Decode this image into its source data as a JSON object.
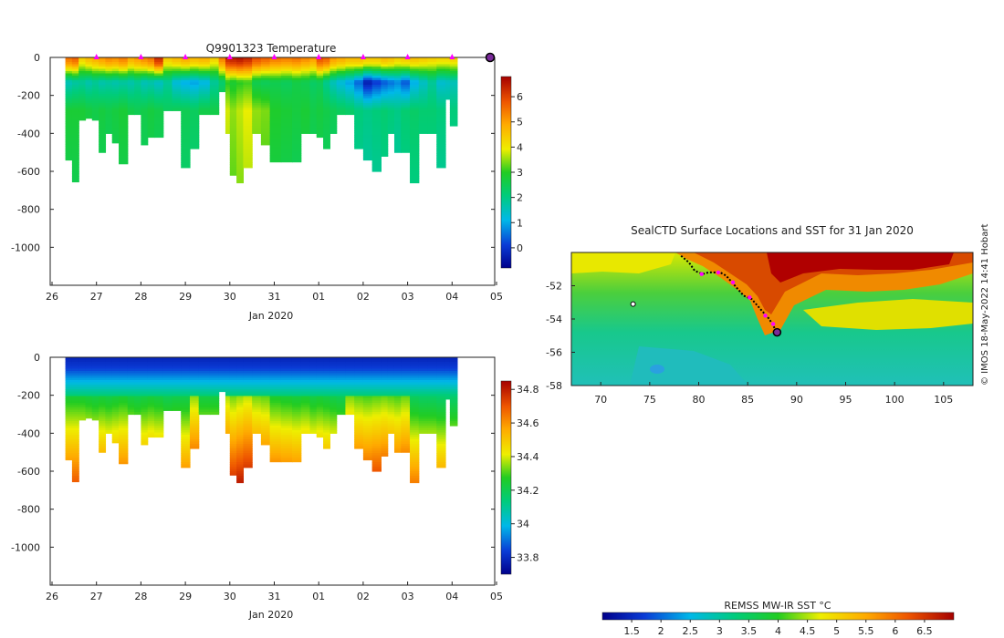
{
  "chart_data": [
    {
      "type": "heatmap",
      "name": "temperature-section",
      "title": "Q9901323  Temperature",
      "xlabel": "Jan 2020",
      "x_tick_labels": [
        "26",
        "27",
        "28",
        "29",
        "30",
        "31",
        "01",
        "02",
        "03",
        "04",
        "05"
      ],
      "x_range_days": [
        26,
        36
      ],
      "y_tick_labels": [
        "0",
        "-200",
        "-400",
        "-600",
        "-800",
        "-1000"
      ],
      "ylim": [
        -1200,
        0
      ],
      "colorbar": {
        "ticks": [
          "6",
          "5",
          "4",
          "3",
          "2",
          "1",
          "0"
        ],
        "range": [
          -0.8,
          6.8
        ],
        "units": "°C"
      },
      "marker_days": [
        27,
        28,
        29,
        30,
        31,
        32,
        33,
        34,
        35
      ],
      "profiles": [
        {
          "day": 26.3,
          "depth": 540,
          "surface": 5.6,
          "deep": 2.8,
          "cold": 1.5
        },
        {
          "day": 26.45,
          "depth": 655,
          "surface": 5.8,
          "deep": 2.8,
          "cold": 1.7
        },
        {
          "day": 26.6,
          "depth": 330,
          "surface": 4.5,
          "deep": 2.8,
          "cold": 1.8
        },
        {
          "day": 26.75,
          "depth": 320,
          "surface": 4.8,
          "deep": 2.7,
          "cold": 1.6
        },
        {
          "day": 26.9,
          "depth": 330,
          "surface": 5.0,
          "deep": 2.6,
          "cold": 1.8
        },
        {
          "day": 27.05,
          "depth": 500,
          "surface": 5.2,
          "deep": 2.7,
          "cold": 1.6
        },
        {
          "day": 27.2,
          "depth": 400,
          "surface": 5.4,
          "deep": 2.6,
          "cold": 1.7
        },
        {
          "day": 27.35,
          "depth": 450,
          "surface": 5.3,
          "deep": 2.7,
          "cold": 1.6
        },
        {
          "day": 27.5,
          "depth": 560,
          "surface": 5.5,
          "deep": 2.8,
          "cold": 1.7
        },
        {
          "day": 27.7,
          "depth": 300,
          "surface": 5.0,
          "deep": 2.6,
          "cold": 1.6
        },
        {
          "day": 27.85,
          "depth": 300,
          "surface": 5.2,
          "deep": 2.5,
          "cold": 1.8
        },
        {
          "day": 28.0,
          "depth": 460,
          "surface": 5.4,
          "deep": 2.6,
          "cold": 1.5
        },
        {
          "day": 28.15,
          "depth": 420,
          "surface": 5.6,
          "deep": 2.7,
          "cold": 1.6
        },
        {
          "day": 28.3,
          "depth": 420,
          "surface": 6.4,
          "deep": 2.6,
          "cold": 1.4
        },
        {
          "day": 28.5,
          "depth": 280,
          "surface": 4.6,
          "deep": 2.4,
          "cold": 1.8
        },
        {
          "day": 28.7,
          "depth": 280,
          "surface": 4.8,
          "deep": 2.5,
          "cold": 1.2
        },
        {
          "day": 28.9,
          "depth": 580,
          "surface": 5.0,
          "deep": 2.5,
          "cold": 1.0
        },
        {
          "day": 29.1,
          "depth": 480,
          "surface": 4.8,
          "deep": 2.4,
          "cold": 0.9
        },
        {
          "day": 29.3,
          "depth": 300,
          "surface": 4.9,
          "deep": 2.6,
          "cold": 1.1
        },
        {
          "day": 29.55,
          "depth": 300,
          "surface": 4.5,
          "deep": 2.6,
          "cold": 1.8
        },
        {
          "day": 29.75,
          "depth": 180,
          "surface": 5.5,
          "deep": 3.0,
          "cold": 2.2
        },
        {
          "day": 29.9,
          "depth": 400,
          "surface": 6.5,
          "deep": 3.8,
          "cold": 3.0
        },
        {
          "day": 30.0,
          "depth": 620,
          "surface": 6.6,
          "deep": 3.5,
          "cold": 2.8
        },
        {
          "day": 30.15,
          "depth": 660,
          "surface": 6.7,
          "deep": 3.7,
          "cold": 3.0
        },
        {
          "day": 30.3,
          "depth": 580,
          "surface": 6.5,
          "deep": 3.9,
          "cold": 3.1
        },
        {
          "day": 30.5,
          "depth": 400,
          "surface": 6.0,
          "deep": 3.5,
          "cold": 2.5
        },
        {
          "day": 30.7,
          "depth": 460,
          "surface": 5.8,
          "deep": 3.4,
          "cold": 2.4
        },
        {
          "day": 30.9,
          "depth": 550,
          "surface": 5.6,
          "deep": 2.9,
          "cold": 2.5
        },
        {
          "day": 31.15,
          "depth": 550,
          "surface": 5.5,
          "deep": 2.8,
          "cold": 2.4
        },
        {
          "day": 31.4,
          "depth": 550,
          "surface": 5.6,
          "deep": 2.7,
          "cold": 2.6
        },
        {
          "day": 31.6,
          "depth": 400,
          "surface": 5.4,
          "deep": 2.8,
          "cold": 2.5
        },
        {
          "day": 31.8,
          "depth": 400,
          "surface": 5.2,
          "deep": 2.6,
          "cold": 2.3
        },
        {
          "day": 31.95,
          "depth": 420,
          "surface": 6.0,
          "deep": 2.7,
          "cold": 2.4
        },
        {
          "day": 32.1,
          "depth": 480,
          "surface": 5.8,
          "deep": 2.6,
          "cold": 1.9
        },
        {
          "day": 32.25,
          "depth": 400,
          "surface": 5.2,
          "deep": 2.5,
          "cold": 1.5
        },
        {
          "day": 32.4,
          "depth": 300,
          "surface": 5.0,
          "deep": 2.4,
          "cold": 1.2
        },
        {
          "day": 32.6,
          "depth": 300,
          "surface": 4.8,
          "deep": 2.3,
          "cold": 0.9
        },
        {
          "day": 32.8,
          "depth": 480,
          "surface": 4.8,
          "deep": 2.1,
          "cold": 0.4
        },
        {
          "day": 33.0,
          "depth": 540,
          "surface": 4.6,
          "deep": 2.0,
          "cold": -0.4
        },
        {
          "day": 33.2,
          "depth": 600,
          "surface": 4.6,
          "deep": 2.1,
          "cold": 0.0
        },
        {
          "day": 33.4,
          "depth": 520,
          "surface": 4.8,
          "deep": 2.2,
          "cold": 0.3
        },
        {
          "day": 33.55,
          "depth": 400,
          "surface": 4.7,
          "deep": 2.1,
          "cold": 0.5
        },
        {
          "day": 33.7,
          "depth": 500,
          "surface": 4.5,
          "deep": 2.0,
          "cold": 0.7
        },
        {
          "day": 33.85,
          "depth": 500,
          "surface": 4.6,
          "deep": 2.2,
          "cold": 0.3
        },
        {
          "day": 34.05,
          "depth": 660,
          "surface": 4.7,
          "deep": 2.3,
          "cold": 1.0
        },
        {
          "day": 34.25,
          "depth": 400,
          "surface": 4.6,
          "deep": 2.2,
          "cold": 1.4
        },
        {
          "day": 34.45,
          "depth": 400,
          "surface": 4.5,
          "deep": 2.2,
          "cold": 1.8
        },
        {
          "day": 34.65,
          "depth": 580,
          "surface": 4.4,
          "deep": 2.1,
          "cold": 1.3
        },
        {
          "day": 34.85,
          "depth": 220,
          "surface": 4.4,
          "deep": 2.0,
          "cold": 1.4
        },
        {
          "day": 34.95,
          "depth": 360,
          "surface": 4.5,
          "deep": 2.1,
          "cold": 1.5
        }
      ]
    },
    {
      "type": "heatmap",
      "name": "salinity-section",
      "xlabel": "Jan 2020",
      "x_tick_labels": [
        "26",
        "27",
        "28",
        "29",
        "30",
        "31",
        "01",
        "02",
        "03",
        "04",
        "05"
      ],
      "y_tick_labels": [
        "0",
        "-200",
        "-400",
        "-600",
        "-800",
        "-1000"
      ],
      "ylim": [
        -1200,
        0
      ],
      "colorbar": {
        "ticks": [
          "34.8",
          "34.6",
          "34.4",
          "34.2",
          "34",
          "33.8"
        ],
        "range": [
          33.7,
          34.85
        ]
      }
    },
    {
      "type": "map",
      "name": "sst-map",
      "title": "SealCTD Surface Locations and SST for 31 Jan 2020",
      "x_tick_labels": [
        "70",
        "75",
        "80",
        "85",
        "90",
        "95",
        "100",
        "105"
      ],
      "xlim": [
        67,
        108
      ],
      "y_tick_labels": [
        "-52",
        "-54",
        "-56",
        "-58"
      ],
      "ylim": [
        -58,
        -50
      ],
      "track_points": [
        [
          78.2,
          -50.2
        ],
        [
          79.0,
          -50.6
        ],
        [
          79.6,
          -51.1
        ],
        [
          80.4,
          -51.3
        ],
        [
          81.0,
          -51.2
        ],
        [
          81.6,
          -51.2
        ],
        [
          82.2,
          -51.2
        ],
        [
          82.8,
          -51.4
        ],
        [
          83.4,
          -51.8
        ],
        [
          84.0,
          -52.2
        ],
        [
          84.6,
          -52.6
        ],
        [
          85.4,
          -52.8
        ],
        [
          86.0,
          -53.2
        ],
        [
          86.6,
          -53.6
        ],
        [
          87.2,
          -54.0
        ],
        [
          87.6,
          -54.4
        ],
        [
          88.0,
          -54.8
        ]
      ],
      "highlight_points": [
        [
          80.3,
          -51.3
        ],
        [
          82.0,
          -51.2
        ],
        [
          83.5,
          -51.8
        ],
        [
          85.2,
          -52.7
        ],
        [
          86.8,
          -53.8
        ],
        [
          87.6,
          -54.3
        ]
      ],
      "current_position": [
        88.0,
        -54.8
      ],
      "start_marker": [
        73.3,
        -53.1
      ],
      "colorbar": {
        "label": "REMSS MW-IR SST °C",
        "ticks": [
          "1.5",
          "2",
          "2.5",
          "3",
          "3.5",
          "4",
          "4.5",
          "5",
          "5.5",
          "6",
          "6.5"
        ],
        "range": [
          1.0,
          7.0
        ]
      }
    }
  ],
  "credit": "© IMOS 18-May-2022 14:41 Hobart"
}
